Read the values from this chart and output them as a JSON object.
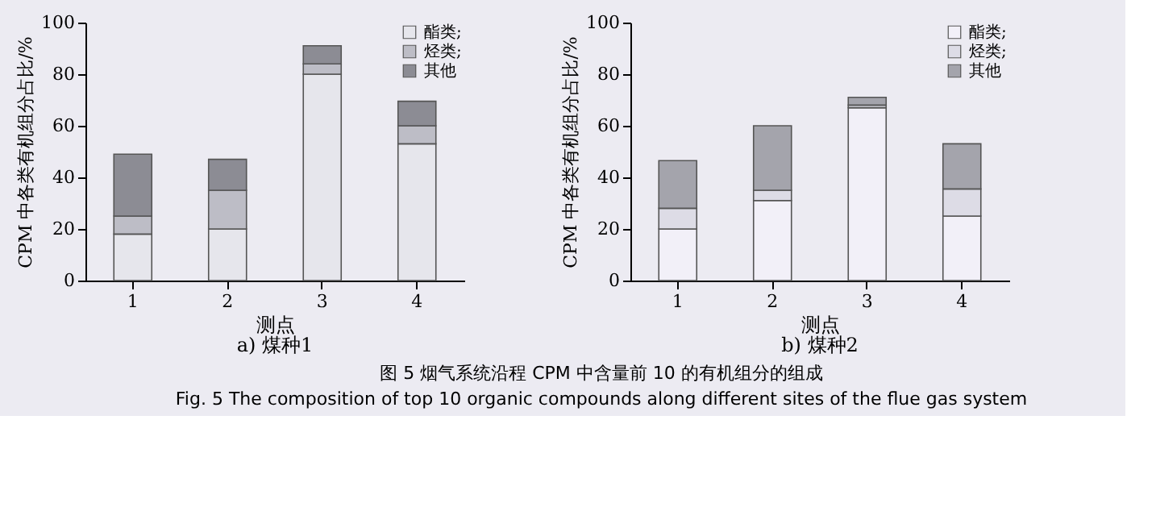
{
  "chart_data": [
    {
      "type": "bar",
      "title": "a) 煤种1",
      "xlabel": "测点",
      "ylabel": "CPM 中各类有机组分占比/%",
      "categories": [
        "1",
        "2",
        "3",
        "4"
      ],
      "stacked": true,
      "ylim": [
        0,
        100
      ],
      "yticks": [
        0,
        20,
        40,
        60,
        80,
        100
      ],
      "legend": "top right",
      "series": [
        {
          "name": "酯类;",
          "color": "#e6e6ec",
          "values": [
            18,
            20,
            80,
            53
          ]
        },
        {
          "name": "烃类;",
          "color": "#bdbdc6",
          "values": [
            7,
            15,
            4,
            7
          ]
        },
        {
          "name": "其他",
          "color": "#8c8c94",
          "values": [
            24,
            12,
            7,
            9.5
          ]
        }
      ],
      "annotations": [
        "图 5  烟气系统沿程 CPM 中含量前 10 的有机组分的组成",
        "Fig. 5    The composition of top 10 organic compounds along different sites of the flue gas system"
      ]
    },
    {
      "type": "bar",
      "title": "b) 煤种2",
      "xlabel": "测点",
      "ylabel": "CPM 中各类有机组分占比/%",
      "categories": [
        "1",
        "2",
        "3",
        "4"
      ],
      "stacked": true,
      "ylim": [
        0,
        100
      ],
      "yticks": [
        0,
        20,
        40,
        60,
        80,
        100
      ],
      "legend": "top right",
      "series": [
        {
          "name": "酯类;",
          "color": "#f2f0f8",
          "values": [
            20,
            31,
            67,
            25
          ]
        },
        {
          "name": "烃类;",
          "color": "#dddce6",
          "values": [
            8,
            4,
            1,
            10.5
          ]
        },
        {
          "name": "其他",
          "color": "#a4a4ac",
          "values": [
            18.5,
            25,
            3,
            17.5
          ]
        }
      ]
    }
  ]
}
